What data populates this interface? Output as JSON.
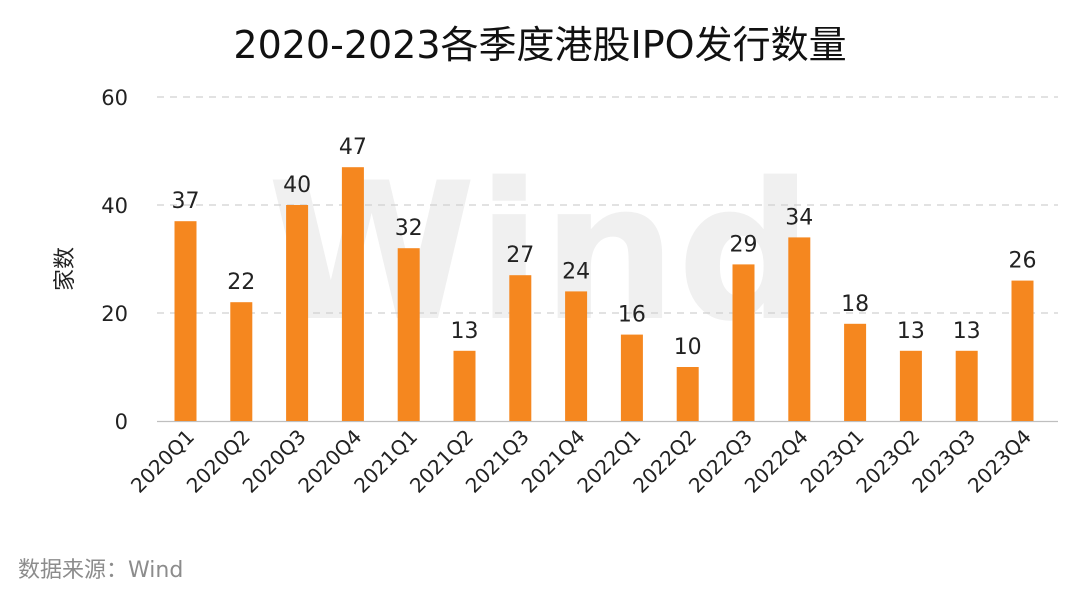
{
  "chart_data": {
    "type": "bar",
    "title": "2020-2023各季度港股IPO发行数量",
    "ylabel": "家数",
    "xlabel": "",
    "ylim": [
      0,
      60
    ],
    "yticks": [
      0,
      20,
      40,
      60
    ],
    "grid": true,
    "categories": [
      "2020Q1",
      "2020Q2",
      "2020Q3",
      "2020Q4",
      "2021Q1",
      "2021Q2",
      "2021Q3",
      "2021Q4",
      "2022Q1",
      "2022Q2",
      "2022Q3",
      "2022Q4",
      "2023Q1",
      "2023Q2",
      "2023Q3",
      "2023Q4"
    ],
    "values": [
      37,
      22,
      40,
      47,
      32,
      13,
      27,
      24,
      16,
      10,
      29,
      34,
      18,
      13,
      13,
      26
    ],
    "bar_color": "#F5871F",
    "data_labels": true
  },
  "watermark": "Wind",
  "source": "数据来源：Wind"
}
